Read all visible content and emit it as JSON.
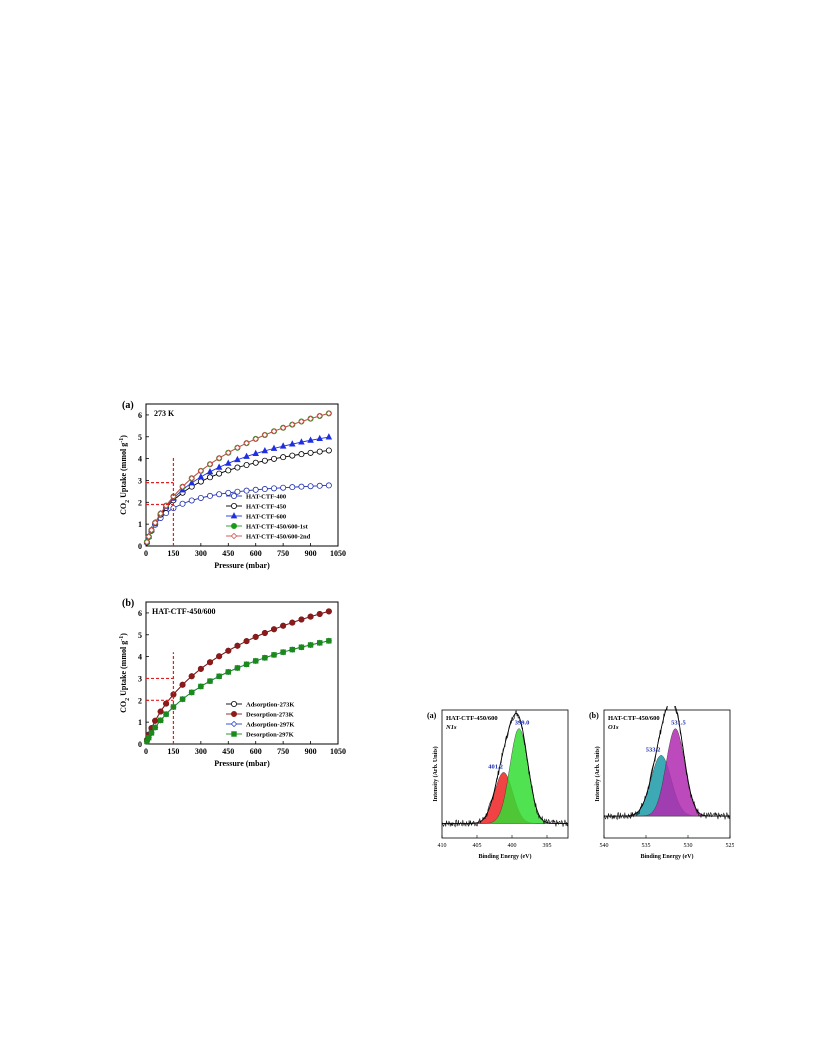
{
  "figures": {
    "panel_a": {
      "label": "(a)",
      "annotation": "273 K"
    },
    "panel_b": {
      "label": "(b)",
      "annotation": "HAT-CTF-450/600"
    },
    "panel_c": {
      "label": "(a)",
      "annotation": "HAT-CTF-450/600",
      "region": "N1s"
    },
    "panel_d": {
      "label": "(b)",
      "annotation": "HAT-CTF-450/600",
      "region": "O1s"
    }
  },
  "chart_data": [
    {
      "id": "iso_a",
      "type": "line",
      "xlabel": "Pressure (mbar)",
      "ylabel_main": "CO",
      "ylabel_sub": "2",
      "ylabel_rest": " Uptake (mmol g",
      "ylabel_sup": "-1",
      "ylabel_end": ")",
      "xlim": [
        0,
        1050
      ],
      "ylim": [
        0,
        6.5
      ],
      "xticks": [
        0,
        150,
        300,
        450,
        600,
        750,
        900,
        1050
      ],
      "yticks": [
        0,
        1,
        2,
        3,
        4,
        5,
        6
      ],
      "legend_position": "bottom-right",
      "reference_lines": [
        {
          "pressure": 150,
          "uptakes": [
            2.9,
            1.9
          ]
        }
      ],
      "model": "langmuir-freundlich",
      "series": [
        {
          "name": "HAT-CTF-400",
          "qm": 3.2,
          "b": 0.008,
          "n": 0.9,
          "color": "#1f2fb0",
          "marker": "circle-open"
        },
        {
          "name": "HAT-CTF-450",
          "qm": 6.0,
          "b": 0.0032,
          "n": 0.85,
          "color": "#000000",
          "marker": "circle-open"
        },
        {
          "name": "HAT-CTF-600",
          "qm": 7.6,
          "b": 0.0022,
          "n": 0.82,
          "color": "#1f2fe0",
          "marker": "triangle-filled"
        },
        {
          "name": "HAT-CTF-450/600-1st",
          "qm": 11.5,
          "b": 0.00115,
          "n": 0.8,
          "color": "#1a9a1a",
          "marker": "circle-filled"
        },
        {
          "name": "HAT-CTF-450/600-2nd",
          "qm": 11.5,
          "b": 0.00115,
          "n": 0.8,
          "color": "#d04a4a",
          "marker": "diamond-open"
        }
      ]
    },
    {
      "id": "iso_b",
      "type": "line",
      "xlabel": "Pressure (mbar)",
      "ylabel_main": "CO",
      "ylabel_sub": "2",
      "ylabel_rest": " Uptake (mmol g",
      "ylabel_sup": "-1",
      "ylabel_end": ")",
      "xlim": [
        0,
        1050
      ],
      "ylim": [
        0,
        6.5
      ],
      "xticks": [
        0,
        150,
        300,
        450,
        600,
        750,
        900,
        1050
      ],
      "yticks": [
        0,
        1,
        2,
        3,
        4,
        5,
        6
      ],
      "legend_position": "bottom-right",
      "reference_lines": [
        {
          "pressure": 150,
          "uptakes": [
            3.0,
            2.0
          ]
        }
      ],
      "model": "langmuir-freundlich",
      "series": [
        {
          "name": "Adsorption-273K",
          "qm": 11.5,
          "b": 0.00115,
          "n": 0.8,
          "color": "#000000",
          "marker": "circle-open"
        },
        {
          "name": "Desorption-273K",
          "qm": 11.5,
          "b": 0.00115,
          "n": 0.8,
          "color": "#8b1a1a",
          "marker": "circle-filled"
        },
        {
          "name": "Adsorption-297K",
          "qm": 8.5,
          "b": 0.0013,
          "n": 0.85,
          "color": "#2a3fd0",
          "marker": "diamond-open"
        },
        {
          "name": "Desorption-297K",
          "qm": 8.5,
          "b": 0.0013,
          "n": 0.85,
          "color": "#1a8a1a",
          "marker": "square-filled"
        }
      ]
    },
    {
      "id": "xps_n",
      "type": "area",
      "xlabel": "Binding Energy (eV)",
      "ylabel": "Intensity (Arb. Units)",
      "xlim": [
        410,
        392
      ],
      "xticks": [
        410,
        405,
        400,
        395
      ],
      "peaks": [
        {
          "label": "401.2",
          "center": 401.2,
          "height": 0.42,
          "sigma": 1.3,
          "color": "#ee2222"
        },
        {
          "label": "399.0",
          "center": 399.0,
          "height": 0.78,
          "sigma": 1.3,
          "color": "#33dd33"
        }
      ],
      "baseline": 0.12
    },
    {
      "id": "xps_o",
      "type": "area",
      "xlabel": "Binding Energy (eV)",
      "ylabel": "Intensity (Arb. Units)",
      "xlim": [
        540,
        525
      ],
      "xticks": [
        540,
        535,
        530,
        525
      ],
      "peaks": [
        {
          "label": "533.2",
          "center": 533.2,
          "height": 0.5,
          "sigma": 1.2,
          "color": "#1a9aa8"
        },
        {
          "label": "531.5",
          "center": 531.5,
          "height": 0.72,
          "sigma": 1.1,
          "color": "#b02ab0"
        }
      ],
      "baseline": 0.18
    }
  ]
}
